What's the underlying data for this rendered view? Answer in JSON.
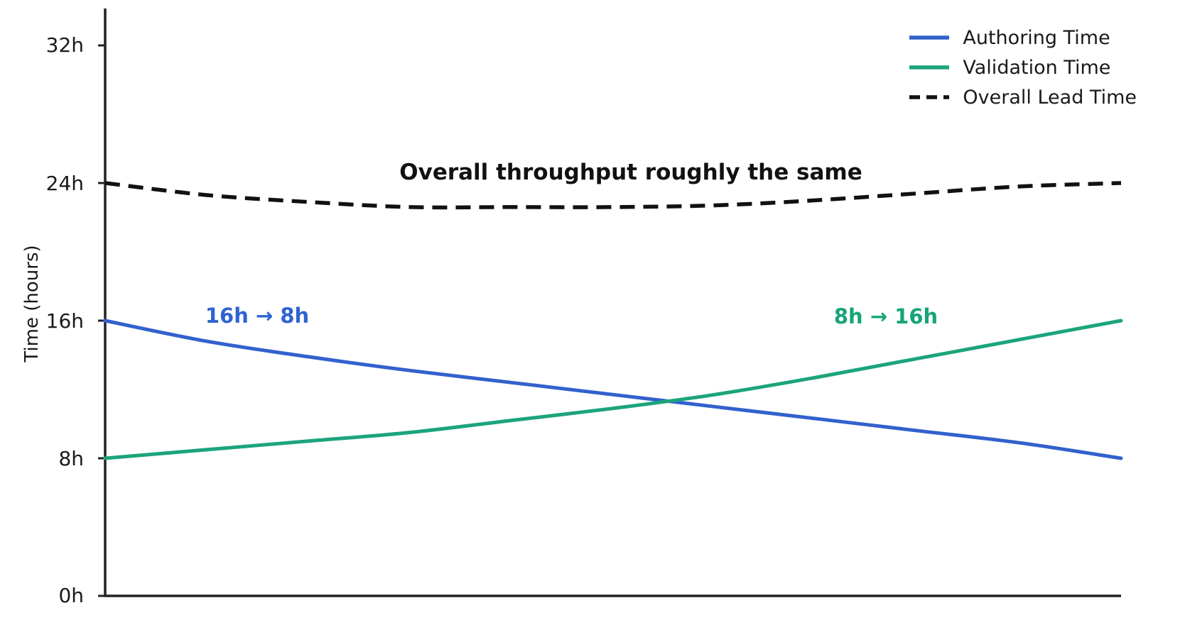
{
  "chart_data": {
    "type": "line",
    "title": "",
    "xlabel": "",
    "ylabel": "Time (hours)",
    "y_ticks": [
      "0h",
      "8h",
      "16h",
      "24h",
      "32h"
    ],
    "y_tick_values": [
      0,
      8,
      16,
      24,
      32
    ],
    "ylim": [
      0,
      34
    ],
    "grid": false,
    "legend_position": "upper right",
    "x_normalized": [
      0,
      0.1,
      0.2,
      0.3,
      0.4,
      0.5,
      0.6,
      0.7,
      0.8,
      0.9,
      1.0
    ],
    "series": [
      {
        "name": "Authoring Time",
        "color": "#3261cd",
        "style": "solid",
        "values": [
          16.0,
          14.8,
          13.9,
          13.1,
          12.4,
          11.7,
          11.0,
          10.3,
          9.6,
          8.9,
          8.0
        ]
      },
      {
        "name": "Validation Time",
        "color": "#1ca47c",
        "style": "solid",
        "values": [
          8.0,
          8.5,
          9.0,
          9.5,
          10.2,
          10.9,
          11.7,
          12.7,
          13.8,
          14.9,
          16.0
        ]
      },
      {
        "name": "Overall Lead Time",
        "color": "#111111",
        "style": "dashed",
        "values": [
          24.0,
          23.3,
          22.9,
          22.6,
          22.6,
          22.6,
          22.7,
          23.0,
          23.4,
          23.8,
          24.0
        ]
      }
    ],
    "annotations": [
      {
        "text": "Overall throughput roughly the same",
        "color": "#111111"
      },
      {
        "text": "16h → 8h",
        "color": "#2f63d2"
      },
      {
        "text": "8h → 16h",
        "color": "#17a478"
      }
    ],
    "axis_color": "#222222"
  }
}
